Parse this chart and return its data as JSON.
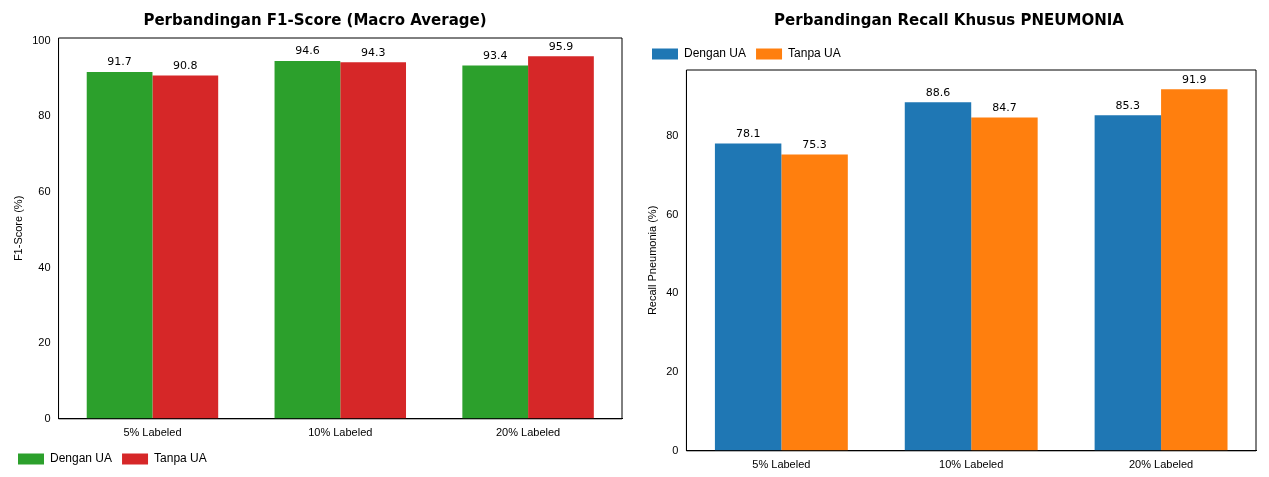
{
  "chart_data": [
    {
      "type": "bar",
      "title": "Perbandingan F1-Score (Macro Average)",
      "ylabel": "F1-Score (%)",
      "categories": [
        "5% Labeled",
        "10% Labeled",
        "20% Labeled"
      ],
      "series": [
        {
          "name": "Dengan UA",
          "color": "#2ca02c",
          "values": [
            91.7,
            94.6,
            93.4
          ]
        },
        {
          "name": "Tanpa UA",
          "color": "#d62728",
          "values": [
            90.8,
            94.3,
            95.9
          ]
        }
      ],
      "ylim": [
        0,
        100.7
      ],
      "yticks": [
        0,
        20,
        40,
        60,
        80,
        100
      ],
      "data_labels": true,
      "legend": "bottom left",
      "grid": false
    },
    {
      "type": "bar",
      "title": "Perbandingan Recall Khusus PNEUMONIA",
      "ylabel": "Recall Pneumonia (%)",
      "categories": [
        "5% Labeled",
        "10% Labeled",
        "20% Labeled"
      ],
      "series": [
        {
          "name": "Dengan UA",
          "color": "#1f77b4",
          "values": [
            78.1,
            88.6,
            85.3
          ]
        },
        {
          "name": "Tanpa UA",
          "color": "#ff7f0e",
          "values": [
            75.3,
            84.7,
            91.9
          ]
        }
      ],
      "ylim": [
        0,
        96.8
      ],
      "yticks": [
        0,
        20,
        40,
        60,
        80
      ],
      "data_labels": true,
      "legend": "top left",
      "grid": false
    }
  ]
}
